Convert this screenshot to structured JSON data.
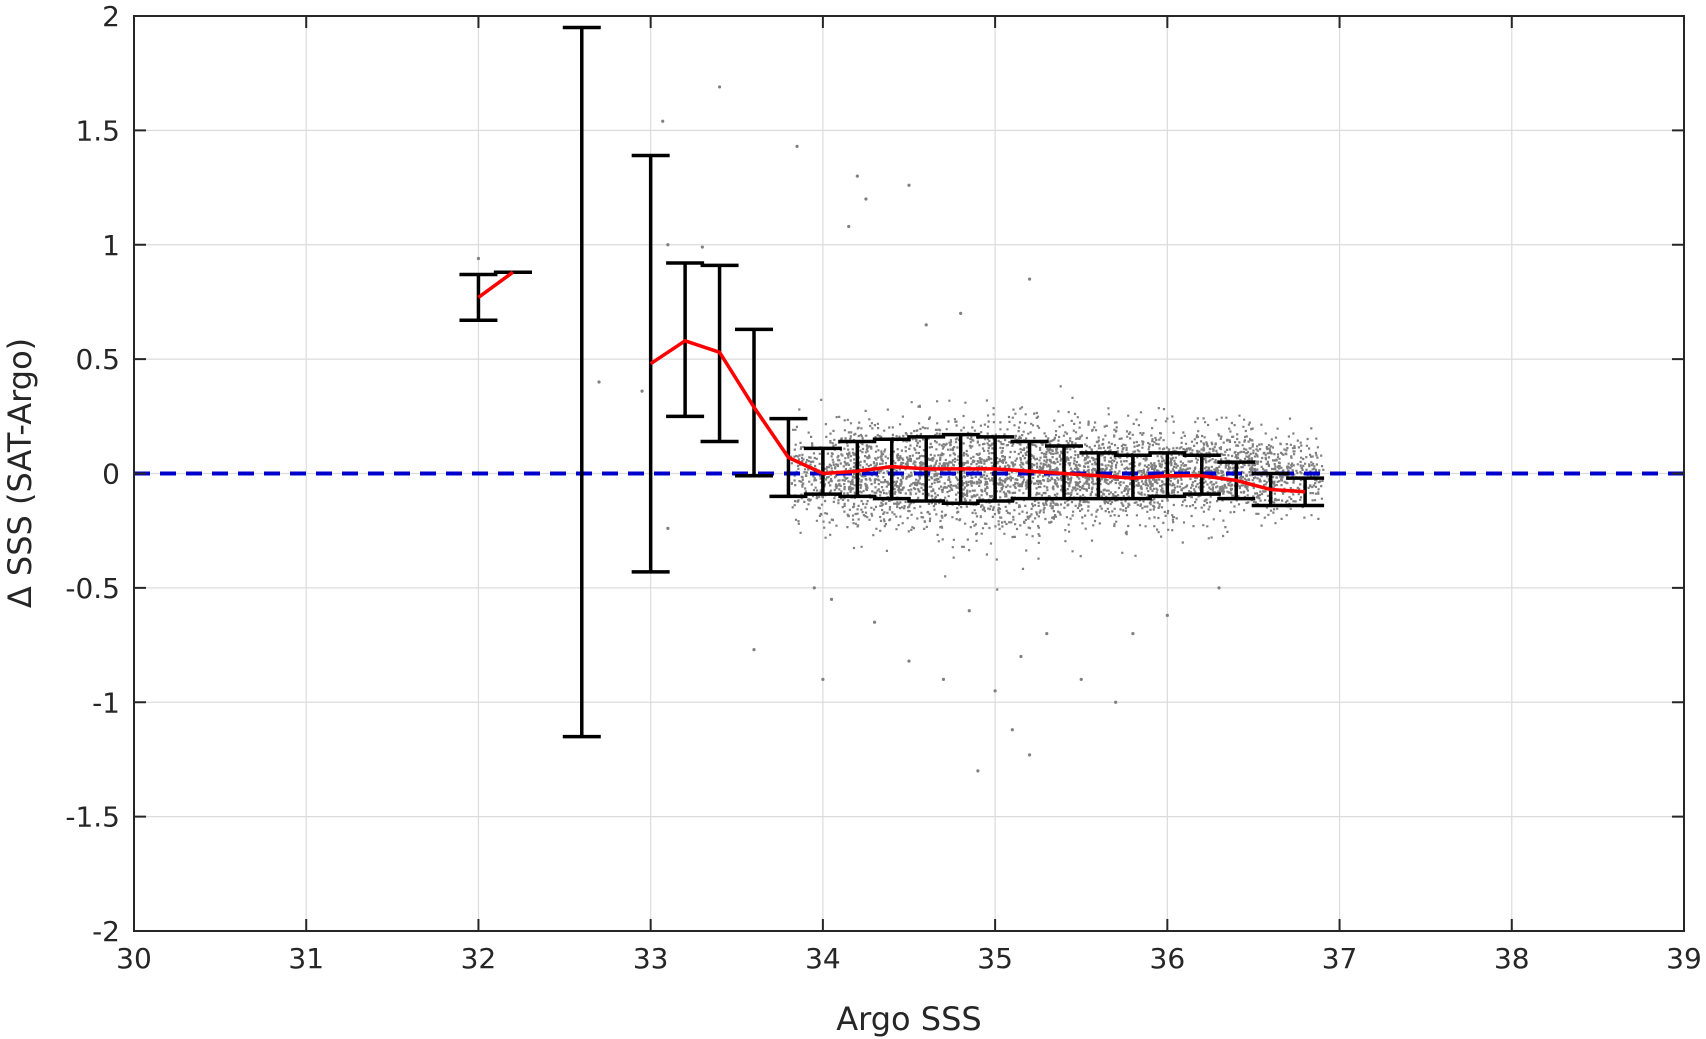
{
  "chart_data": {
    "type": "scatter",
    "title": "",
    "xlabel": "Argo SSS",
    "ylabel": "Δ SSS (SAT-Argo)",
    "xlim": [
      30,
      39
    ],
    "ylim": [
      -2,
      2
    ],
    "xticks": [
      30,
      31,
      32,
      33,
      34,
      35,
      36,
      37,
      38,
      39
    ],
    "yticks": [
      -2,
      -1.5,
      -1,
      -0.5,
      0,
      0.5,
      1,
      1.5,
      2
    ],
    "grid": true,
    "reference_line": {
      "y": 0,
      "style": "dashed",
      "color": "#0000cc"
    },
    "scatter_cloud": {
      "color": "#808080",
      "description_x_range": [
        33.8,
        36.9
      ],
      "core_bias": 0.0,
      "core_spread": 0.1
    },
    "outlier_points": [
      [
        32.0,
        0.94
      ],
      [
        33.07,
        1.54
      ],
      [
        33.4,
        1.69
      ],
      [
        33.3,
        0.99
      ],
      [
        33.1,
        1.0
      ],
      [
        32.95,
        0.36
      ],
      [
        33.1,
        -0.24
      ],
      [
        32.7,
        0.4
      ],
      [
        33.95,
        -0.5
      ],
      [
        34.05,
        -0.55
      ],
      [
        34.0,
        -0.9
      ],
      [
        33.6,
        -0.77
      ],
      [
        34.2,
        1.3
      ],
      [
        34.25,
        1.2
      ],
      [
        34.15,
        1.08
      ],
      [
        33.85,
        1.43
      ],
      [
        34.5,
        1.26
      ],
      [
        35.2,
        0.85
      ],
      [
        34.8,
        0.7
      ],
      [
        34.6,
        0.65
      ],
      [
        34.5,
        -0.82
      ],
      [
        34.7,
        -0.9
      ],
      [
        34.9,
        -1.3
      ],
      [
        35.2,
        -1.23
      ],
      [
        35.1,
        -1.12
      ],
      [
        35.15,
        -0.8
      ],
      [
        35.5,
        -0.9
      ],
      [
        35.7,
        -1.0
      ],
      [
        36.0,
        -0.62
      ],
      [
        36.3,
        -0.5
      ],
      [
        34.3,
        -0.65
      ],
      [
        35.0,
        -0.95
      ],
      [
        35.3,
        -0.7
      ],
      [
        34.85,
        -0.6
      ],
      [
        35.8,
        -0.7
      ]
    ],
    "error_bars": [
      {
        "x": 32.0,
        "low": 0.67,
        "high": 0.87
      },
      {
        "x": 32.2,
        "low": 0.88,
        "high": 0.88
      },
      {
        "x": 32.6,
        "low": -1.15,
        "high": 1.95
      },
      {
        "x": 33.0,
        "low": -0.43,
        "high": 1.39
      },
      {
        "x": 33.2,
        "low": 0.25,
        "high": 0.92
      },
      {
        "x": 33.4,
        "low": 0.14,
        "high": 0.91
      },
      {
        "x": 33.6,
        "low": -0.01,
        "high": 0.63
      },
      {
        "x": 33.8,
        "low": -0.1,
        "high": 0.24
      },
      {
        "x": 34.0,
        "low": -0.09,
        "high": 0.11
      },
      {
        "x": 34.2,
        "low": -0.1,
        "high": 0.14
      },
      {
        "x": 34.4,
        "low": -0.11,
        "high": 0.15
      },
      {
        "x": 34.6,
        "low": -0.12,
        "high": 0.16
      },
      {
        "x": 34.8,
        "low": -0.13,
        "high": 0.17
      },
      {
        "x": 35.0,
        "low": -0.12,
        "high": 0.16
      },
      {
        "x": 35.2,
        "low": -0.11,
        "high": 0.14
      },
      {
        "x": 35.4,
        "low": -0.11,
        "high": 0.12
      },
      {
        "x": 35.6,
        "low": -0.11,
        "high": 0.09
      },
      {
        "x": 35.8,
        "low": -0.11,
        "high": 0.08
      },
      {
        "x": 36.0,
        "low": -0.1,
        "high": 0.09
      },
      {
        "x": 36.2,
        "low": -0.09,
        "high": 0.08
      },
      {
        "x": 36.4,
        "low": -0.11,
        "high": 0.05
      },
      {
        "x": 36.6,
        "low": -0.14,
        "high": 0.0
      },
      {
        "x": 36.8,
        "low": -0.14,
        "high": -0.02
      }
    ],
    "mean_line": {
      "color": "#ff0000",
      "segments": [
        [
          [
            32.0,
            0.77
          ],
          [
            32.2,
            0.88
          ]
        ],
        [
          [
            33.0,
            0.48
          ],
          [
            33.2,
            0.58
          ],
          [
            33.4,
            0.53
          ],
          [
            33.6,
            0.29
          ],
          [
            33.8,
            0.07
          ],
          [
            34.0,
            0.0
          ],
          [
            34.2,
            0.01
          ],
          [
            34.4,
            0.03
          ],
          [
            34.6,
            0.02
          ],
          [
            34.8,
            0.02
          ],
          [
            35.0,
            0.02
          ],
          [
            35.2,
            0.01
          ],
          [
            35.4,
            0.0
          ],
          [
            35.6,
            -0.01
          ],
          [
            35.8,
            -0.02
          ],
          [
            36.0,
            -0.01
          ],
          [
            36.2,
            -0.01
          ],
          [
            36.4,
            -0.03
          ],
          [
            36.6,
            -0.07
          ],
          [
            36.8,
            -0.08
          ]
        ]
      ]
    }
  }
}
